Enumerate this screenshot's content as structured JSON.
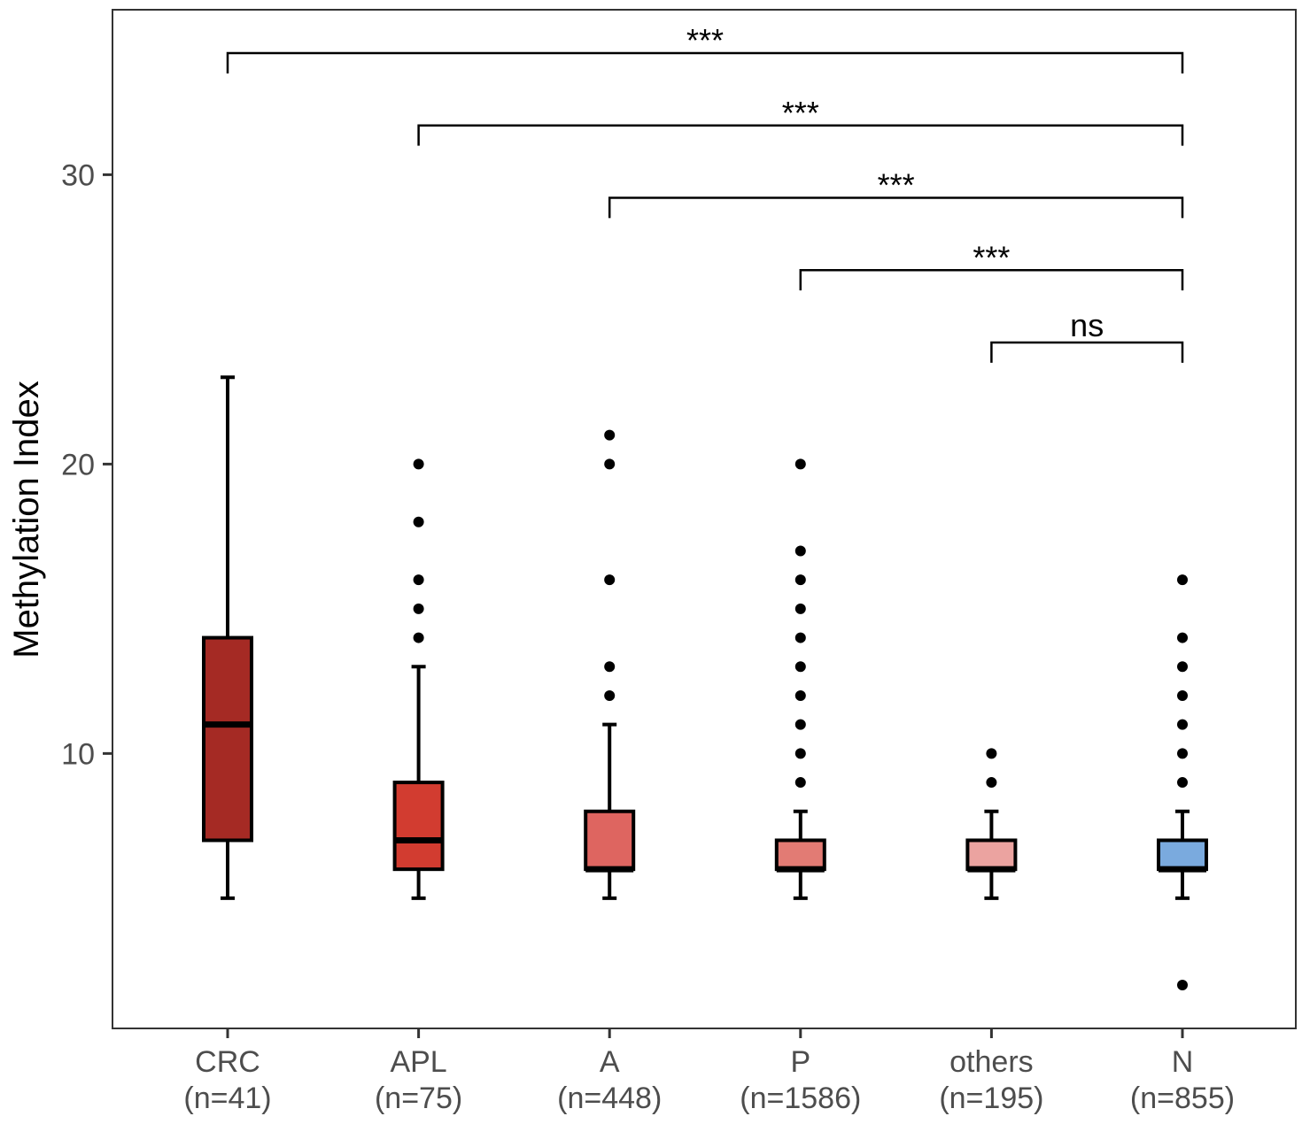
{
  "chart_data": {
    "type": "boxplot",
    "title": "",
    "xlabel": "",
    "ylabel": "Methylation Index",
    "ylim": [
      0.5,
      35.7
    ],
    "yticks": [
      10,
      20,
      30
    ],
    "grid": false,
    "categories": [
      {
        "name": "CRC",
        "n": "(n=41)"
      },
      {
        "name": "APL",
        "n": "(n=75)"
      },
      {
        "name": "A",
        "n": "(n=448)"
      },
      {
        "name": "P",
        "n": "(n=1586)"
      },
      {
        "name": "others",
        "n": "(n=195)"
      },
      {
        "name": "N",
        "n": "(n=855)"
      }
    ],
    "boxes": [
      {
        "group": "CRC",
        "whisker_low": 5,
        "q1": 7,
        "median": 11,
        "q3": 14,
        "whisker_high": 23,
        "outliers": [],
        "color": "#A52A24"
      },
      {
        "group": "APL",
        "whisker_low": 5,
        "q1": 6,
        "median": 7,
        "q3": 9,
        "whisker_high": 13,
        "outliers": [
          14,
          15,
          16,
          18,
          20
        ],
        "color": "#D23C30"
      },
      {
        "group": "A",
        "whisker_low": 5,
        "q1": 6,
        "median": 6,
        "q3": 8,
        "whisker_high": 11,
        "outliers": [
          12,
          13,
          16,
          20,
          21
        ],
        "color": "#DE6560"
      },
      {
        "group": "P",
        "whisker_low": 5,
        "q1": 6,
        "median": 6,
        "q3": 7,
        "whisker_high": 8,
        "outliers": [
          9,
          10,
          11,
          12,
          13,
          14,
          15,
          16,
          17,
          20
        ],
        "color": "#E27B74"
      },
      {
        "group": "others",
        "whisker_low": 5,
        "q1": 6,
        "median": 6,
        "q3": 7,
        "whisker_high": 8,
        "outliers": [
          9,
          10
        ],
        "color": "#EBA3A0"
      },
      {
        "group": "N",
        "whisker_low": 5,
        "q1": 6,
        "median": 6,
        "q3": 7,
        "whisker_high": 8,
        "outliers": [
          2,
          9,
          10,
          11,
          12,
          13,
          14,
          16
        ],
        "color": "#7AAADE"
      }
    ],
    "comparisons": [
      {
        "from": "CRC",
        "to": "N",
        "label": "***",
        "y_data": 34.2,
        "tip_data": 33.5
      },
      {
        "from": "APL",
        "to": "N",
        "label": "***",
        "y_data": 31.7,
        "tip_data": 31.0
      },
      {
        "from": "A",
        "to": "N",
        "label": "***",
        "y_data": 29.2,
        "tip_data": 28.5
      },
      {
        "from": "P",
        "to": "N",
        "label": "***",
        "y_data": 26.7,
        "tip_data": 26.0
      },
      {
        "from": "others",
        "to": "N",
        "label": "ns",
        "y_data": 24.2,
        "tip_data": 23.5
      }
    ]
  }
}
